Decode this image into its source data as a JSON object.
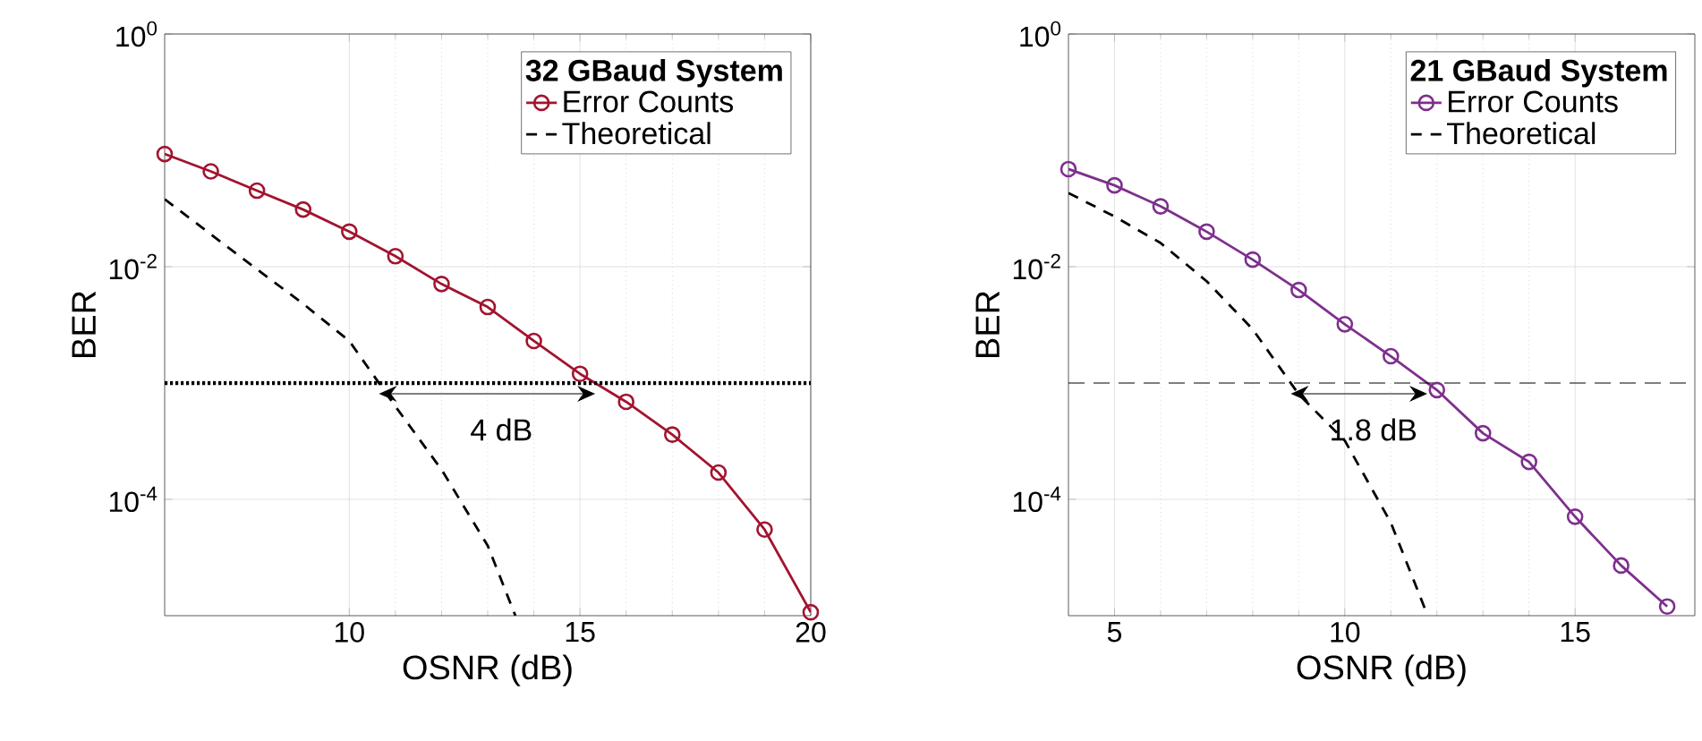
{
  "chart_data": [
    {
      "type": "line",
      "xlabel": "OSNR (dB)",
      "ylabel": "BER",
      "legend_title": "32 GBaud System",
      "log": "y",
      "grid": true,
      "legend": "top right",
      "xlim": [
        6,
        20
      ],
      "xticks": [
        10,
        15,
        20
      ],
      "ylim": [
        1e-05,
        1
      ],
      "yticks": [
        {
          "value": 1,
          "label": "10$^{0}$"
        },
        {
          "value": 0.01,
          "label": "10$^{-2}$"
        },
        {
          "value": 0.0001,
          "label": "10$^{-4}$"
        }
      ],
      "series": [
        {
          "name": "Error Counts",
          "color": "#a2142f",
          "marker": "circle",
          "line_style": "solid",
          "x": [
            6,
            7,
            8,
            9,
            10,
            11,
            12,
            13,
            14,
            15,
            16,
            17,
            18,
            19,
            20
          ],
          "values": [
            0.093,
            0.066,
            0.045,
            0.031,
            0.02,
            0.0123,
            0.0071,
            0.0045,
            0.0023,
            0.0012,
            0.00069,
            0.00036,
            0.00017,
            5.5e-05,
            1.07e-05
          ]
        },
        {
          "name": "Theoretical",
          "color": "#000000",
          "marker": "none",
          "line_style": "dashed",
          "x": [
            6,
            7,
            8,
            9,
            10,
            11,
            12,
            13,
            13.6
          ],
          "values": [
            0.038,
            0.019,
            0.0095,
            0.0048,
            0.0023,
            0.00063,
            0.00018,
            4e-05,
            1e-05
          ]
        }
      ],
      "ref_lines": [
        {
          "axis": "y",
          "value": 0.001,
          "color": "#000000",
          "line_style": "dotted"
        }
      ],
      "annotations": [
        "4 dB"
      ]
    },
    {
      "type": "line",
      "xlabel": "OSNR (dB)",
      "ylabel": "BER",
      "legend_title": "21 GBaud System",
      "log": "y",
      "grid": true,
      "legend": "top right",
      "xlim": [
        4,
        17.6
      ],
      "xticks": [
        5,
        10,
        15
      ],
      "ylim": [
        1e-05,
        1
      ],
      "yticks": [
        {
          "value": 1,
          "label": "10$^{0}$"
        },
        {
          "value": 0.01,
          "label": "10$^{-2}$"
        },
        {
          "value": 0.0001,
          "label": "10$^{-4}$"
        }
      ],
      "series": [
        {
          "name": "Error Counts",
          "color": "#7e2f8e",
          "marker": "circle",
          "line_style": "solid",
          "x": [
            4,
            5,
            6,
            7,
            8,
            9,
            10,
            11,
            12,
            13,
            14,
            15,
            16,
            17
          ],
          "values": [
            0.069,
            0.05,
            0.033,
            0.02,
            0.0115,
            0.0063,
            0.0032,
            0.0017,
            0.00087,
            0.00037,
            0.00021,
            7.1e-05,
            2.7e-05,
            1.2e-05
          ]
        },
        {
          "name": "Theoretical",
          "color": "#000000",
          "marker": "none",
          "line_style": "dashed",
          "x": [
            4,
            5,
            6,
            7,
            8,
            9,
            10,
            11,
            11.8
          ],
          "values": [
            0.043,
            0.027,
            0.016,
            0.0075,
            0.0029,
            0.0008,
            0.00032,
            6.3e-05,
            1e-05
          ]
        }
      ],
      "ref_lines": [
        {
          "axis": "y",
          "value": 0.001,
          "color": "#000000",
          "line_style": "dashed"
        }
      ],
      "annotations": [
        "1.8 dB"
      ]
    }
  ]
}
